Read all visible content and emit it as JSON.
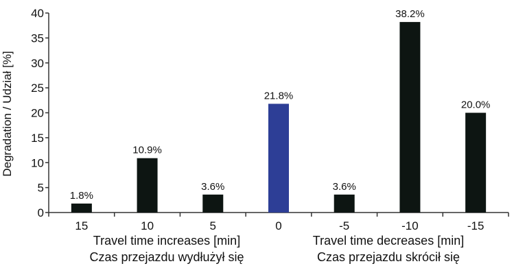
{
  "chart_data": {
    "type": "bar",
    "categories": [
      "15",
      "10",
      "5",
      "0",
      "-5",
      "-10",
      "-15"
    ],
    "values": [
      1.8,
      10.9,
      3.6,
      21.8,
      3.6,
      38.2,
      20.0
    ],
    "value_labels": [
      "1.8%",
      "10.9%",
      "3.6%",
      "21.8%",
      "3.6%",
      "38.2%",
      "20.0%"
    ],
    "highlight_index": 3,
    "ylabel": "Degradation / Udział [%]",
    "ylim": [
      0,
      40
    ],
    "yticks": [
      0,
      5,
      10,
      15,
      20,
      25,
      30,
      35,
      40
    ],
    "ytick_labels": [
      "0",
      "5",
      "10",
      "15",
      "20",
      "25",
      "30",
      "35",
      "40"
    ],
    "group_labels": [
      {
        "line1": "Travel time increases [min]",
        "line2": "Czas przejazdu wydłużył się"
      },
      {
        "line1": "Travel time decreases [min]",
        "line2": "Czas przejazdu skrócił się"
      }
    ],
    "grid": false,
    "legend": "none",
    "colors": {
      "bar": "#0d1512",
      "highlight": "#2d3e96",
      "axis": "#333333"
    }
  }
}
